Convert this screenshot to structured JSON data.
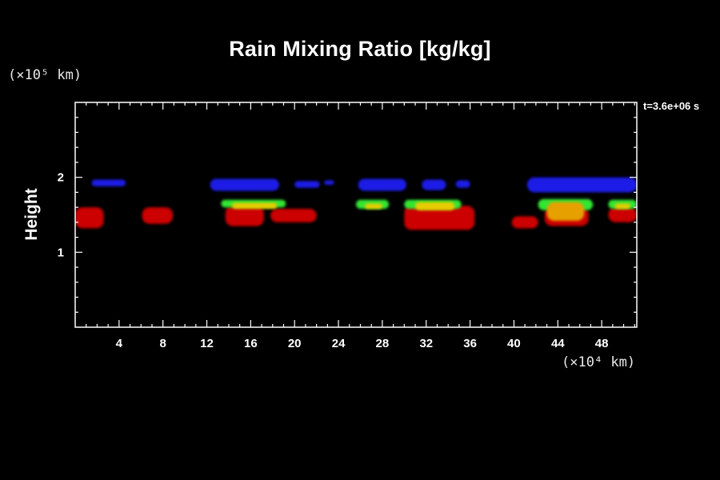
{
  "chart_data": {
    "type": "heatmap",
    "title": "Rain Mixing Ratio [kg/kg]",
    "time_label": "t=3.6e+06 s",
    "ylabel": "Height",
    "y_unit": "(×10⁵ km)",
    "x_unit": "(×10⁴ km)",
    "xlim": [
      0,
      51.2
    ],
    "ylim": [
      0,
      3
    ],
    "x_ticks": [
      4,
      8,
      12,
      16,
      20,
      24,
      28,
      32,
      36,
      40,
      44,
      48
    ],
    "y_ticks": [
      1,
      2
    ],
    "colors": {
      "low": "#1a1ae6",
      "level1": "#33e633",
      "level2": "#e6cc00",
      "level3": "#e6a000",
      "high": "#cc0000",
      "high_dark": "#b00000"
    },
    "regions": [
      {
        "level": "low",
        "x0": 1.5,
        "x1": 4.6,
        "y0": 1.88,
        "y1": 1.97
      },
      {
        "level": "low",
        "x0": 12.3,
        "x1": 18.6,
        "y0": 1.82,
        "y1": 1.98
      },
      {
        "level": "low",
        "x0": 20.0,
        "x1": 22.3,
        "y0": 1.86,
        "y1": 1.95
      },
      {
        "level": "low",
        "x0": 22.7,
        "x1": 23.6,
        "y0": 1.9,
        "y1": 1.96
      },
      {
        "level": "low",
        "x0": 25.8,
        "x1": 30.2,
        "y0": 1.82,
        "y1": 1.98
      },
      {
        "level": "low",
        "x0": 31.6,
        "x1": 33.8,
        "y0": 1.83,
        "y1": 1.97
      },
      {
        "level": "low",
        "x0": 34.7,
        "x1": 36.0,
        "y0": 1.86,
        "y1": 1.96
      },
      {
        "level": "low",
        "x0": 41.2,
        "x1": 51.2,
        "y0": 1.8,
        "y1": 2.0
      },
      {
        "level": "high",
        "x0": 0.0,
        "x1": 2.6,
        "y0": 1.32,
        "y1": 1.6
      },
      {
        "level": "high",
        "x0": 6.1,
        "x1": 8.9,
        "y0": 1.38,
        "y1": 1.6
      },
      {
        "level": "high",
        "x0": 13.7,
        "x1": 17.2,
        "y0": 1.35,
        "y1": 1.62
      },
      {
        "level": "high",
        "x0": 17.8,
        "x1": 22.0,
        "y0": 1.4,
        "y1": 1.58
      },
      {
        "level": "high",
        "x0": 30.0,
        "x1": 36.4,
        "y0": 1.3,
        "y1": 1.62
      },
      {
        "level": "high",
        "x0": 39.8,
        "x1": 42.2,
        "y0": 1.32,
        "y1": 1.48
      },
      {
        "level": "high",
        "x0": 42.8,
        "x1": 46.8,
        "y0": 1.35,
        "y1": 1.6
      },
      {
        "level": "high",
        "x0": 48.6,
        "x1": 51.2,
        "y0": 1.4,
        "y1": 1.6
      },
      {
        "level": "level1",
        "x0": 13.3,
        "x1": 19.2,
        "y0": 1.6,
        "y1": 1.7
      },
      {
        "level": "level1",
        "x0": 25.6,
        "x1": 28.6,
        "y0": 1.58,
        "y1": 1.7
      },
      {
        "level": "level1",
        "x0": 30.0,
        "x1": 35.2,
        "y0": 1.58,
        "y1": 1.7
      },
      {
        "level": "level1",
        "x0": 42.2,
        "x1": 47.2,
        "y0": 1.56,
        "y1": 1.71
      },
      {
        "level": "level1",
        "x0": 48.6,
        "x1": 51.2,
        "y0": 1.58,
        "y1": 1.7
      },
      {
        "level": "level2",
        "x0": 14.3,
        "x1": 18.4,
        "y0": 1.58,
        "y1": 1.66
      },
      {
        "level": "level2",
        "x0": 26.4,
        "x1": 28.0,
        "y0": 1.58,
        "y1": 1.65
      },
      {
        "level": "level2",
        "x0": 31.0,
        "x1": 34.6,
        "y0": 1.56,
        "y1": 1.67
      },
      {
        "level": "level3",
        "x0": 43.0,
        "x1": 46.4,
        "y0": 1.42,
        "y1": 1.67
      },
      {
        "level": "level2",
        "x0": 49.2,
        "x1": 50.6,
        "y0": 1.58,
        "y1": 1.65
      }
    ]
  }
}
